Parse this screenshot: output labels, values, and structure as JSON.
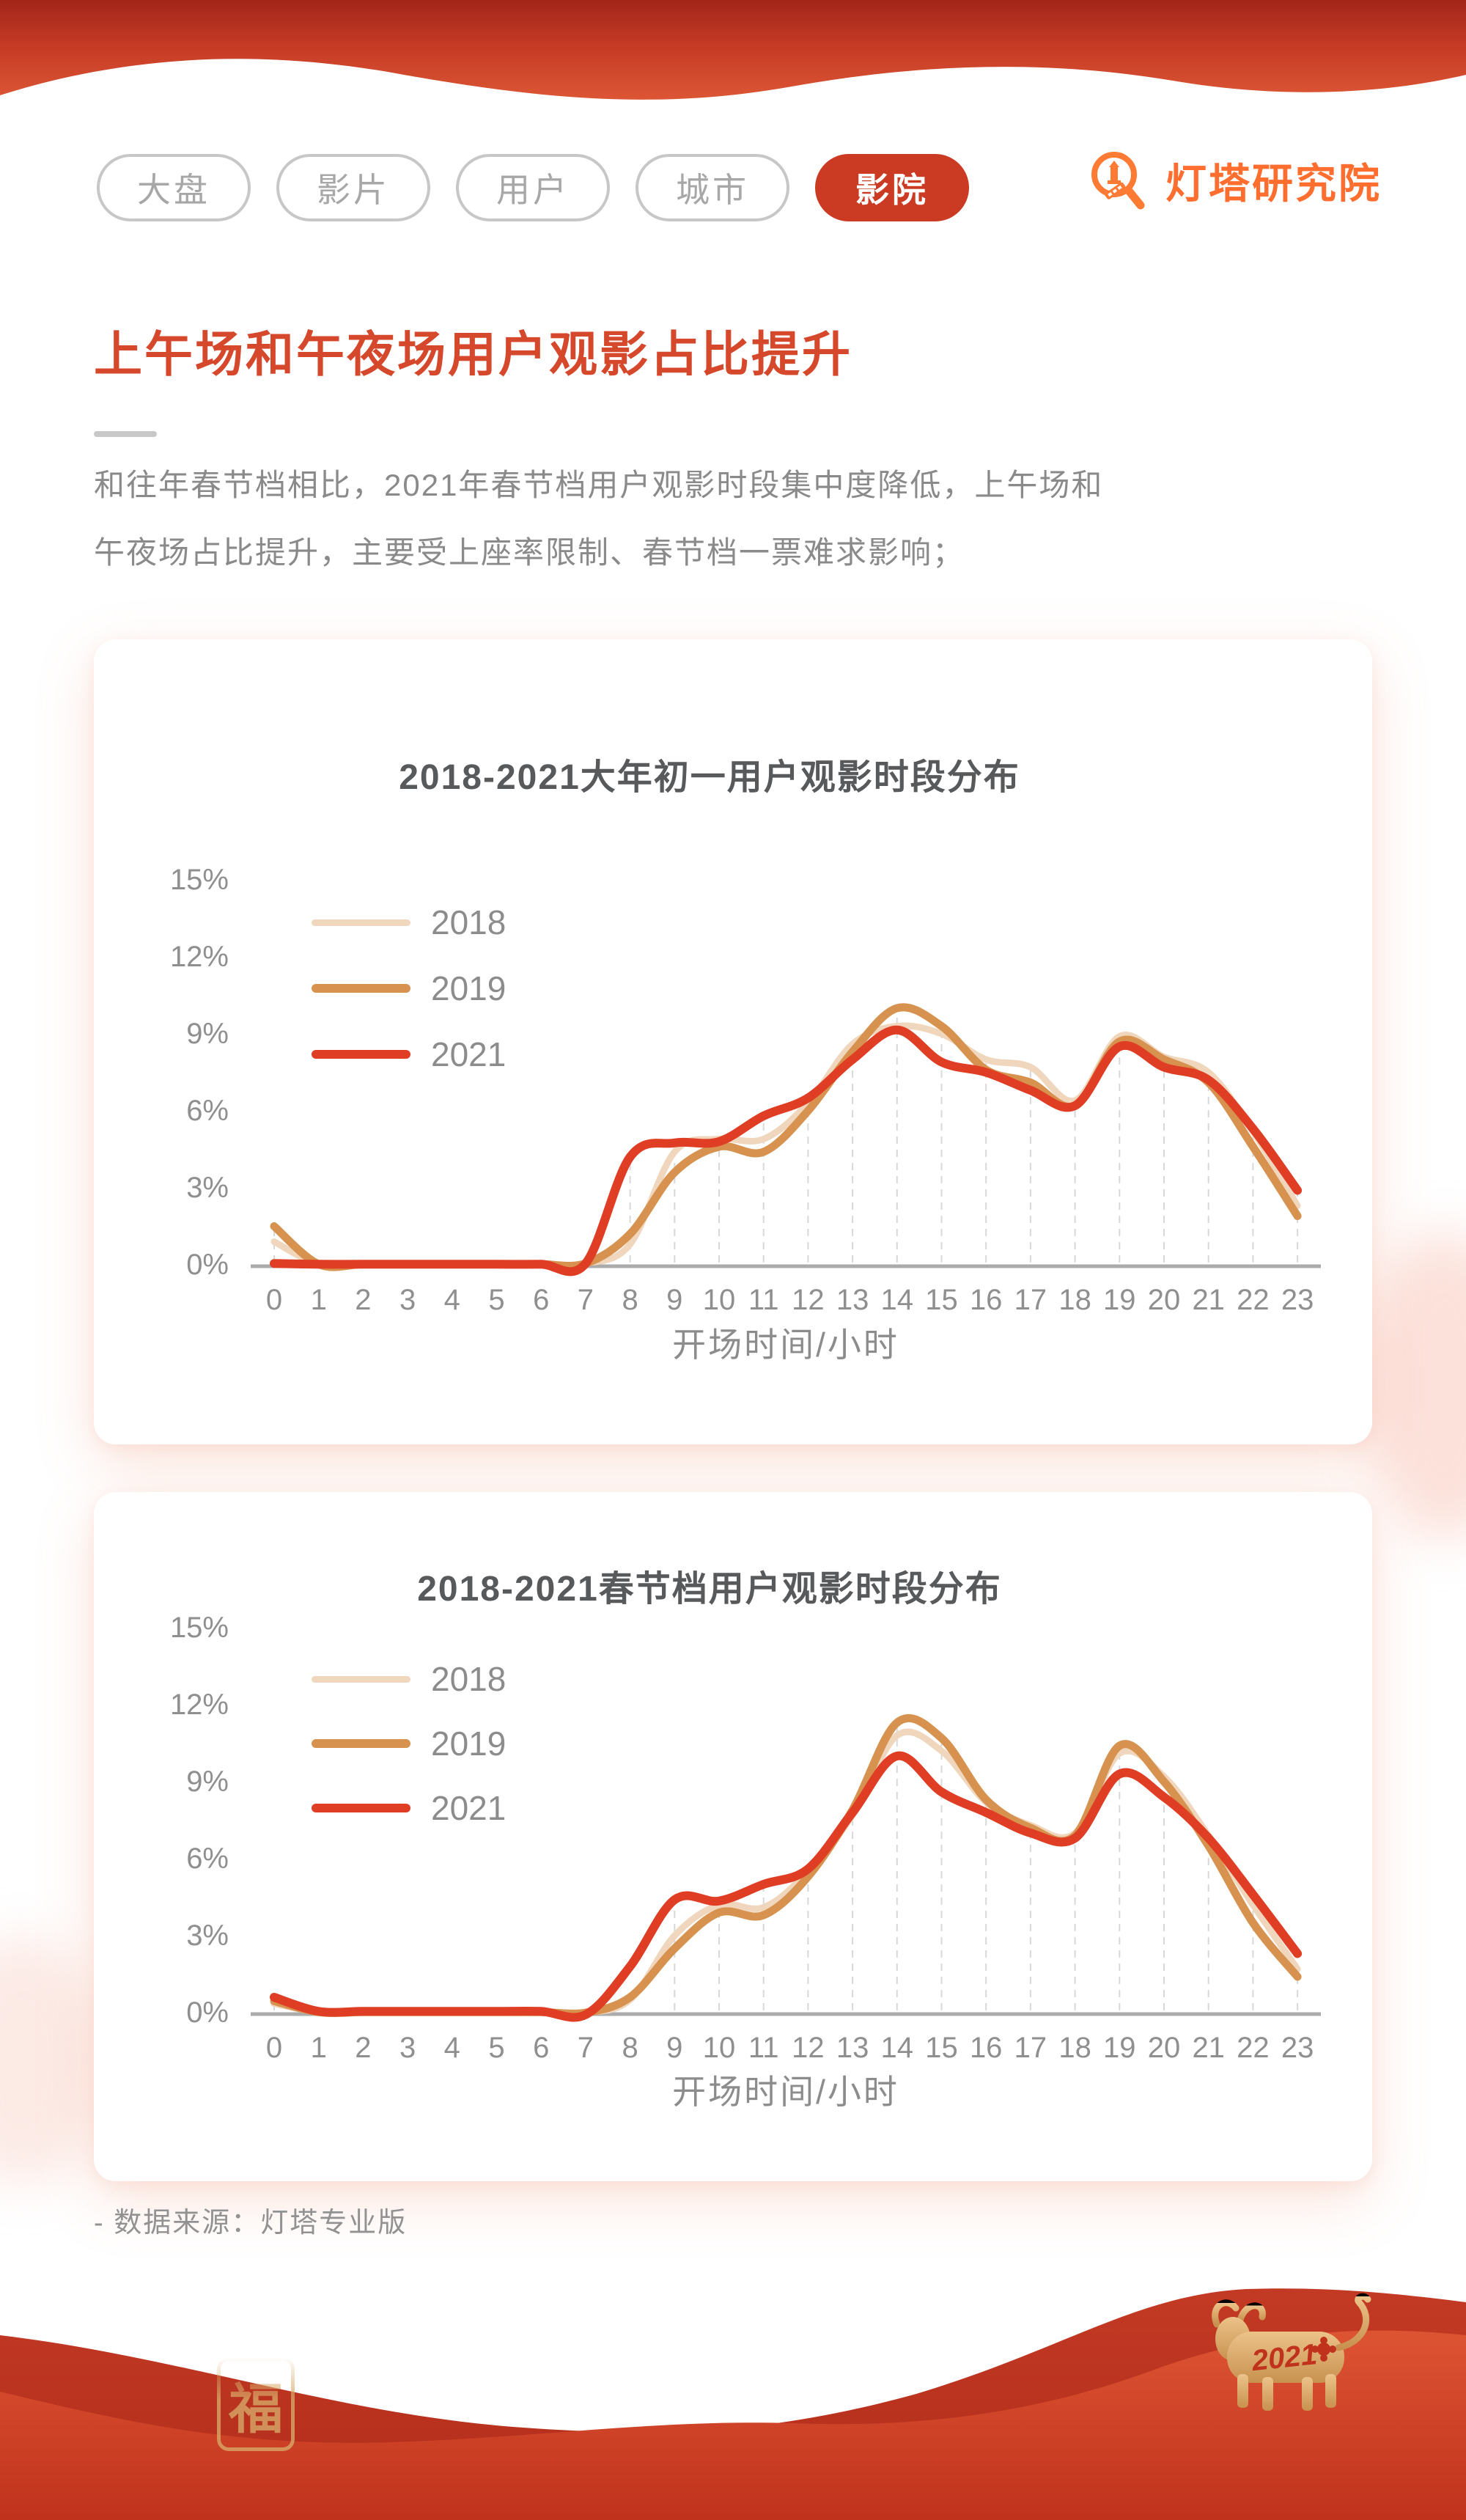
{
  "nav": {
    "items": [
      {
        "label": "大盘",
        "active": false
      },
      {
        "label": "影片",
        "active": false
      },
      {
        "label": "用户",
        "active": false
      },
      {
        "label": "城市",
        "active": false
      },
      {
        "label": "影院",
        "active": true
      }
    ]
  },
  "brand": {
    "name": "灯塔研究院",
    "icon": "lighthouse-magnifier-icon",
    "color": "#FF6E2E"
  },
  "page": {
    "title": "上午场和午夜场用户观影占比提升",
    "description_line1": "和往年春节档相比，2021年春节档用户观影时段集中度降低，上午场和",
    "description_line2": "午夜场占比提升，主要受上座率限制、春节档一票难求影响；",
    "source_note": "- 数据来源：灯塔专业版"
  },
  "colors": {
    "accent_red": "#D5482B",
    "nav_active_bg": "#CB3A23",
    "series_2018": "#EFD6BC",
    "series_2019": "#D6924E",
    "series_2021": "#E03D25",
    "axis_text": "#8F8F8F",
    "baseline": "#ABABAB",
    "dropline": "#D8D8D8"
  },
  "footer_wave": {
    "fu_seal_char": "福",
    "ox_year_label": "2021"
  },
  "chart_data": [
    {
      "type": "line",
      "title": "2018-2021大年初一用户观影时段分布",
      "xlabel": "开场时间/小时",
      "ylabel": "",
      "x": [
        0,
        1,
        2,
        3,
        4,
        5,
        6,
        7,
        8,
        9,
        10,
        11,
        12,
        13,
        14,
        15,
        16,
        17,
        18,
        19,
        20,
        21,
        22,
        23
      ],
      "y_ticks": [
        "15%",
        "12%",
        "9%",
        "6%",
        "3%",
        "0%"
      ],
      "ylim": [
        0,
        15
      ],
      "legend_position": "upper-left",
      "grid": "dashed-vertical-droplines",
      "dropline_hours": [
        0,
        8,
        9,
        10,
        11,
        12,
        13,
        14,
        15,
        16,
        17,
        18,
        19,
        20,
        21,
        22,
        23
      ],
      "series": [
        {
          "name": "2018",
          "color": "#EFD6BC",
          "values": [
            0.9,
            0.02,
            0.02,
            0.02,
            0.02,
            0.02,
            0.02,
            0.05,
            0.8,
            4.4,
            4.9,
            4.9,
            6.3,
            8.6,
            9.3,
            9.0,
            8.0,
            7.7,
            6.4,
            8.9,
            8.1,
            7.5,
            5.2,
            2.3
          ]
        },
        {
          "name": "2019",
          "color": "#D6924E",
          "values": [
            1.5,
            0.02,
            0.02,
            0.02,
            0.02,
            0.02,
            0.02,
            0.05,
            1.2,
            3.6,
            4.6,
            4.4,
            6.0,
            8.3,
            10.0,
            9.3,
            7.6,
            7.1,
            6.2,
            8.7,
            8.0,
            7.1,
            4.6,
            1.9
          ]
        },
        {
          "name": "2021",
          "color": "#E03D25",
          "values": [
            0.05,
            0.02,
            0.02,
            0.02,
            0.02,
            0.02,
            0.02,
            0.05,
            4.2,
            4.75,
            4.8,
            5.8,
            6.5,
            8.0,
            9.15,
            7.9,
            7.5,
            6.8,
            6.2,
            8.5,
            7.7,
            7.2,
            5.3,
            2.9
          ]
        }
      ]
    },
    {
      "type": "line",
      "title": "2018-2021春节档用户观影时段分布",
      "xlabel": "开场时间/小时",
      "ylabel": "",
      "x": [
        0,
        1,
        2,
        3,
        4,
        5,
        6,
        7,
        8,
        9,
        10,
        11,
        12,
        13,
        14,
        15,
        16,
        17,
        18,
        19,
        20,
        21,
        22,
        23
      ],
      "y_ticks": [
        "15%",
        "12%",
        "9%",
        "6%",
        "3%",
        "0%"
      ],
      "ylim": [
        0,
        15
      ],
      "legend_position": "upper-left",
      "grid": "dashed-vertical-droplines",
      "dropline_hours": [
        0,
        9,
        10,
        11,
        12,
        13,
        14,
        15,
        16,
        17,
        18,
        19,
        20,
        21,
        22,
        23
      ],
      "series": [
        {
          "name": "2018",
          "color": "#EFD6BC",
          "values": [
            0.35,
            0.02,
            0.02,
            0.02,
            0.02,
            0.02,
            0.02,
            0.0,
            0.5,
            3.0,
            4.2,
            4.1,
            5.5,
            7.7,
            10.8,
            10.2,
            8.2,
            7.3,
            7.0,
            10.1,
            9.2,
            6.9,
            4.2,
            1.7
          ]
        },
        {
          "name": "2019",
          "color": "#D6924E",
          "values": [
            0.45,
            0.02,
            0.02,
            0.02,
            0.02,
            0.02,
            0.02,
            0.0,
            0.6,
            2.5,
            3.9,
            3.8,
            5.3,
            7.9,
            11.3,
            10.7,
            8.3,
            7.2,
            6.9,
            10.4,
            9.0,
            6.5,
            3.5,
            1.4
          ]
        },
        {
          "name": "2021",
          "color": "#E03D25",
          "values": [
            0.6,
            0.05,
            0.05,
            0.05,
            0.05,
            0.05,
            0.05,
            -0.08,
            1.8,
            4.4,
            4.35,
            5.0,
            5.6,
            7.8,
            10.0,
            8.6,
            7.8,
            7.0,
            6.8,
            9.3,
            8.4,
            6.8,
            4.6,
            2.3
          ]
        }
      ]
    }
  ]
}
